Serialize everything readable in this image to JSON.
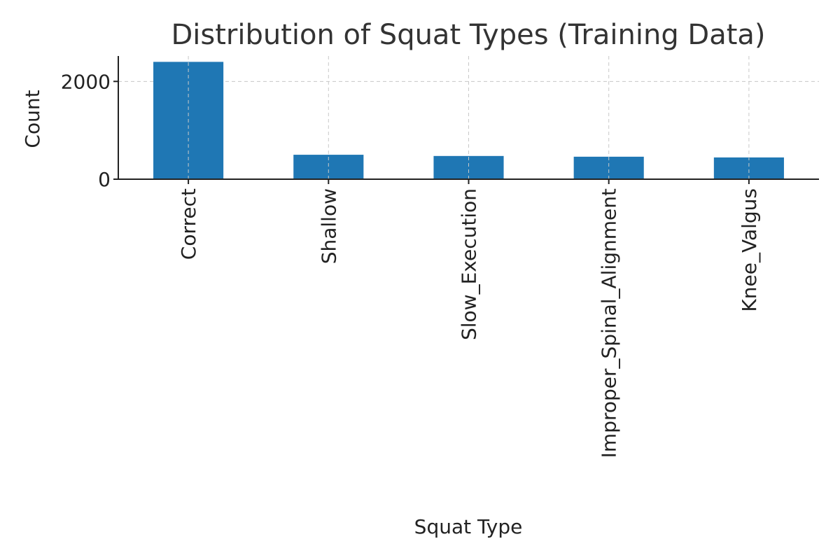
{
  "chart_data": {
    "type": "bar",
    "title": "Distribution of Squat Types (Training Data)",
    "xlabel": "Squat Type",
    "ylabel": "Count",
    "categories": [
      "Correct",
      "Shallow",
      "Slow_Execution",
      "Improper_Spinal_Alignment",
      "Knee_Valgus"
    ],
    "values": [
      2400,
      500,
      475,
      460,
      445
    ],
    "ylim": [
      0,
      2520
    ],
    "yticks": [
      0,
      2000
    ],
    "grid": true,
    "colors": {
      "bar": "#1f77b4"
    }
  }
}
